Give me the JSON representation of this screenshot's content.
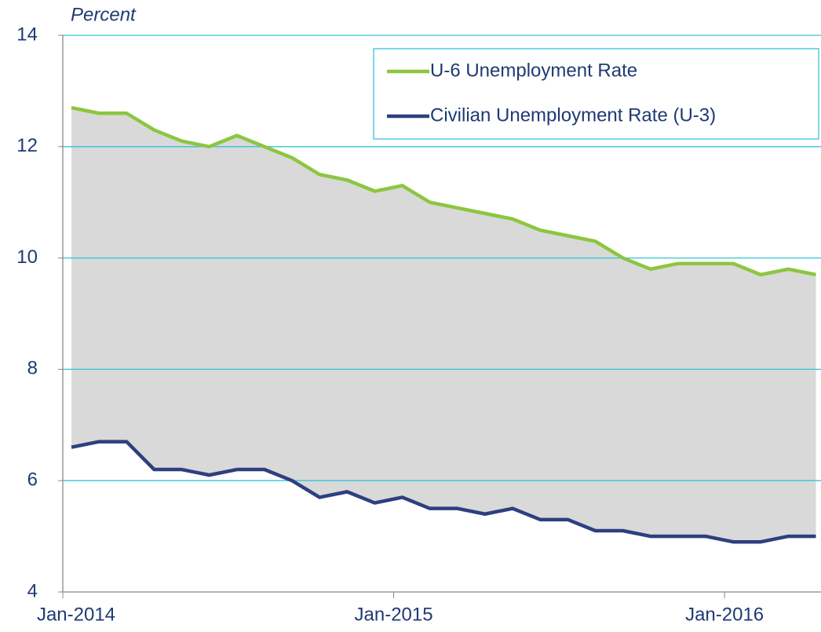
{
  "chart_data": {
    "type": "line",
    "y_axis_label": "Percent",
    "categories": [
      "Jan-2014",
      null,
      null,
      null,
      null,
      null,
      null,
      null,
      null,
      null,
      null,
      null,
      "Jan-2015",
      null,
      null,
      null,
      null,
      null,
      null,
      null,
      null,
      null,
      null,
      null,
      "Jan-2016",
      null,
      null,
      null
    ],
    "series": [
      {
        "name": "U-6 Unemployment Rate",
        "color": "#8cc63f",
        "values": [
          12.7,
          12.6,
          12.6,
          12.3,
          12.1,
          12.0,
          12.2,
          12.0,
          11.8,
          11.5,
          11.4,
          11.2,
          11.3,
          11.0,
          10.9,
          10.8,
          10.7,
          10.5,
          10.4,
          10.3,
          10.0,
          9.8,
          9.9,
          9.9,
          9.9,
          9.7,
          9.8,
          9.7
        ]
      },
      {
        "name": "Civilian Unemployment Rate (U-3)",
        "color": "#2e3f80",
        "values": [
          6.6,
          6.7,
          6.7,
          6.2,
          6.2,
          6.1,
          6.2,
          6.2,
          6.0,
          5.7,
          5.8,
          5.6,
          5.7,
          5.5,
          5.5,
          5.4,
          5.5,
          5.3,
          5.3,
          5.1,
          5.1,
          5.0,
          5.0,
          5.0,
          4.9,
          4.9,
          5.0,
          5.0
        ]
      }
    ],
    "fill_between": "#d9d9d9",
    "ylim": [
      4,
      14
    ],
    "yticks": [
      4,
      6,
      8,
      10,
      12,
      14
    ],
    "grid": true,
    "grid_color": "#33c3dc",
    "legend": "upper right"
  }
}
